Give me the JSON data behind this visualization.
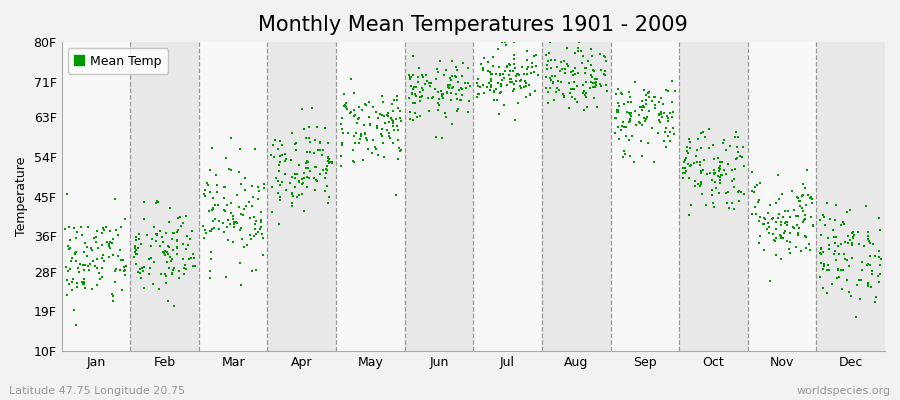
{
  "title": "Monthly Mean Temperatures 1901 - 2009",
  "ylabel": "Temperature",
  "xlabel_labels": [
    "Jan",
    "Feb",
    "Mar",
    "Apr",
    "May",
    "Jun",
    "Jul",
    "Aug",
    "Sep",
    "Oct",
    "Nov",
    "Dec"
  ],
  "ytick_labels": [
    "10F",
    "19F",
    "28F",
    "36F",
    "45F",
    "54F",
    "63F",
    "71F",
    "80F"
  ],
  "ytick_values": [
    10,
    19,
    28,
    36,
    45,
    54,
    63,
    71,
    80
  ],
  "ylim": [
    10,
    80
  ],
  "xlim": [
    0,
    12
  ],
  "dot_color": "#009900",
  "bg_color": "#f2f2f2",
  "band_dark": "#e8e8e8",
  "band_light": "#f8f8f8",
  "legend_label": "Mean Temp",
  "footer_left": "Latitude 47.75 Longitude 20.75",
  "footer_right": "worldspecies.org",
  "title_fontsize": 15,
  "label_fontsize": 9,
  "tick_fontsize": 9,
  "footer_fontsize": 8,
  "num_years": 109,
  "monthly_means_F": [
    30.5,
    32.0,
    41.5,
    52.0,
    61.0,
    68.5,
    72.5,
    71.5,
    63.0,
    51.5,
    40.0,
    32.0
  ],
  "monthly_stds_F": [
    5.5,
    5.5,
    6.0,
    5.0,
    4.5,
    3.5,
    3.5,
    3.5,
    4.5,
    5.0,
    5.0,
    5.5
  ],
  "seed": 42
}
